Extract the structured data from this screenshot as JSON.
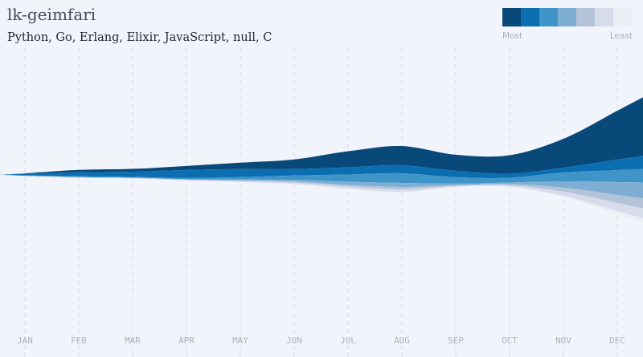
{
  "header": {
    "title": "lk-geimfari",
    "subtitle": "Python, Go, Erlang, Elixir, JavaScript, null, C"
  },
  "legend": {
    "most_label": "Most",
    "least_label": "Least",
    "colors": [
      "#08497a",
      "#0a6eb1",
      "#3f95c8",
      "#7eaed3",
      "#b5c3d9",
      "#d7dcea",
      "#ebedf5"
    ]
  },
  "chart_data": {
    "type": "area",
    "categories": [
      "JAN",
      "FEB",
      "MAR",
      "APR",
      "MAY",
      "JUN",
      "JUL",
      "AUG",
      "SEP",
      "OCT",
      "NOV",
      "DEC"
    ],
    "series": [
      {
        "values": [
          1,
          6,
          7,
          10,
          16,
          24,
          40,
          48,
          40,
          46,
          72,
          122
        ]
      },
      {
        "values": [
          4,
          10,
          13,
          20,
          20,
          16,
          18,
          20,
          16,
          10,
          12,
          26
        ]
      },
      {
        "values": [
          1,
          2,
          2,
          3,
          6,
          11,
          18,
          24,
          16,
          12,
          22,
          30
        ]
      },
      {
        "values": [
          0,
          0,
          0,
          1,
          2,
          4,
          8,
          10,
          4,
          4,
          16,
          32
        ]
      },
      {
        "values": [
          0,
          1,
          1,
          1,
          2,
          3,
          4,
          6,
          2,
          3,
          10,
          20
        ]
      },
      {
        "values": [
          0,
          1,
          1,
          1,
          2,
          3,
          5,
          6,
          2,
          3,
          10,
          20
        ]
      },
      {
        "values": [
          0,
          0,
          0,
          0,
          1,
          1,
          2,
          2,
          1,
          1,
          3,
          8
        ]
      }
    ],
    "grid": true
  }
}
